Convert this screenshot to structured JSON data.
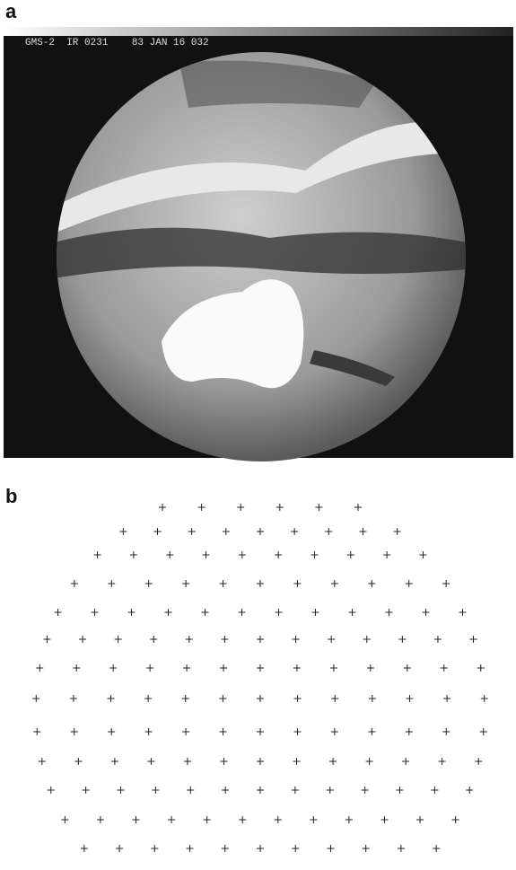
{
  "panels": [
    {
      "label": "a",
      "header": "GMS-2  IR 0231    83 JAN 16 032"
    },
    {
      "label": "b"
    }
  ]
}
